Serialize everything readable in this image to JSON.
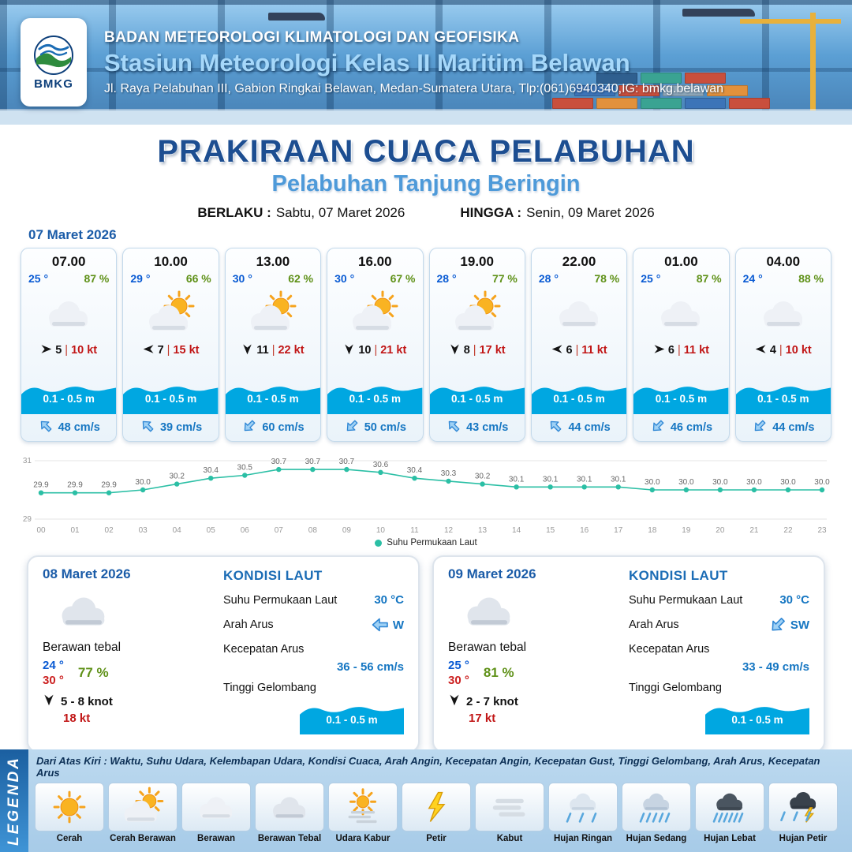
{
  "header": {
    "agency": "BADAN METEOROLOGI KLIMATOLOGI DAN GEOFISIKA",
    "station": "Stasiun Meteorologi Kelas II Maritim Belawan",
    "address": "Jl. Raya Pelabuhan III, Gabion Ringkai Belawan, Medan-Sumatera Utara, Tlp:(061)6940340,IG: bmkg.belawan",
    "logo_text": "BMKG"
  },
  "title": {
    "main": "PRAKIRAAN CUACA PELABUHAN",
    "sub": "Pelabuhan Tanjung Beringin",
    "berlaku_label": "BERLAKU :",
    "berlaku_value": "Sabtu, 07 Maret 2026",
    "hingga_label": "HINGGA :",
    "hingga_value": "Senin, 09 Maret 2026"
  },
  "forecast": {
    "date_label": "07 Maret 2026",
    "hourly": [
      {
        "time": "07.00",
        "temp": "25 °",
        "humidity": "87 %",
        "icon": "berawan",
        "wind_speed": "5",
        "wind_deg": 0,
        "gust": "10 kt",
        "wave": "0.1 - 0.5 m",
        "current": "48 cm/s",
        "current_deg": -135
      },
      {
        "time": "10.00",
        "temp": "29 °",
        "humidity": "66 %",
        "icon": "cerah-berawan",
        "wind_speed": "7",
        "wind_deg": 180,
        "gust": "15 kt",
        "wave": "0.1 - 0.5 m",
        "current": "39 cm/s",
        "current_deg": -135
      },
      {
        "time": "13.00",
        "temp": "30 °",
        "humidity": "62 %",
        "icon": "cerah-berawan",
        "wind_speed": "11",
        "wind_deg": 90,
        "gust": "22 kt",
        "wave": "0.1 - 0.5 m",
        "current": "60 cm/s",
        "current_deg": 135
      },
      {
        "time": "16.00",
        "temp": "30 °",
        "humidity": "67 %",
        "icon": "cerah-berawan",
        "wind_speed": "10",
        "wind_deg": 90,
        "gust": "21 kt",
        "wave": "0.1 - 0.5 m",
        "current": "50 cm/s",
        "current_deg": 135
      },
      {
        "time": "19.00",
        "temp": "28 °",
        "humidity": "77 %",
        "icon": "cerah-berawan",
        "wind_speed": "8",
        "wind_deg": 90,
        "gust": "17 kt",
        "wave": "0.1 - 0.5 m",
        "current": "43 cm/s",
        "current_deg": -135
      },
      {
        "time": "22.00",
        "temp": "28 °",
        "humidity": "78 %",
        "icon": "berawan",
        "wind_speed": "6",
        "wind_deg": 180,
        "gust": "11 kt",
        "wave": "0.1 - 0.5 m",
        "current": "44 cm/s",
        "current_deg": -135
      },
      {
        "time": "01.00",
        "temp": "25 °",
        "humidity": "87 %",
        "icon": "berawan",
        "wind_speed": "6",
        "wind_deg": 0,
        "gust": "11 kt",
        "wave": "0.1 - 0.5 m",
        "current": "46 cm/s",
        "current_deg": 135
      },
      {
        "time": "04.00",
        "temp": "24 °",
        "humidity": "88 %",
        "icon": "berawan",
        "wind_speed": "4",
        "wind_deg": 180,
        "gust": "10 kt",
        "wave": "0.1 - 0.5 m",
        "current": "44 cm/s",
        "current_deg": 135
      }
    ]
  },
  "chart_data": {
    "type": "line",
    "x": [
      "00",
      "01",
      "02",
      "03",
      "04",
      "05",
      "06",
      "07",
      "08",
      "09",
      "10",
      "11",
      "12",
      "13",
      "14",
      "15",
      "16",
      "17",
      "18",
      "19",
      "20",
      "21",
      "22",
      "23"
    ],
    "series": [
      {
        "name": "Suhu Permukaan Laut",
        "values": [
          29.9,
          29.9,
          29.9,
          30.0,
          30.2,
          30.4,
          30.5,
          30.7,
          30.7,
          30.7,
          30.6,
          30.4,
          30.3,
          30.2,
          30.1,
          30.1,
          30.1,
          30.1,
          30.0,
          30.0,
          30.0,
          30.0,
          30.0,
          30.0
        ]
      }
    ],
    "ylim": [
      29,
      31
    ],
    "line_color": "#2bbfa5",
    "legend_position": "bottom"
  },
  "daily": [
    {
      "date": "08 Maret 2026",
      "condition": "Berawan tebal",
      "icon": "berawan-tebal",
      "temp_min": "24 °",
      "temp_max": "30 °",
      "humidity": "77 %",
      "wind": "5 - 8 knot",
      "wind_deg": 90,
      "gust": "18 kt",
      "sea": {
        "title": "KONDISI LAUT",
        "sst_label": "Suhu Permukaan Laut",
        "sst": "30 °C",
        "dir_label": "Arah Arus",
        "dir": "W",
        "dir_deg": 180,
        "speed_label": "Kecepatan Arus",
        "speed": "36  - 56 cm/s",
        "wave_label": "Tinggi Gelombang",
        "wave": "0.1 - 0.5 m"
      }
    },
    {
      "date": "09 Maret 2026",
      "condition": "Berawan tebal",
      "icon": "berawan-tebal",
      "temp_min": "25 °",
      "temp_max": "30 °",
      "humidity": "81 %",
      "wind": "2  - 7 knot",
      "wind_deg": 90,
      "gust": "17 kt",
      "sea": {
        "title": "KONDISI LAUT",
        "sst_label": "Suhu Permukaan Laut",
        "sst": "30 °C",
        "dir_label": "Arah Arus",
        "dir": "SW",
        "dir_deg": 135,
        "speed_label": "Kecepatan Arus",
        "speed": "33  - 49 cm/s",
        "wave_label": "Tinggi Gelombang",
        "wave": "0.1 - 0.5 m"
      }
    }
  ],
  "legend": {
    "vertical_label": "LEGENDA",
    "description": "Dari Atas Kiri : Waktu, Suhu Udara, Kelembapan Udara, Kondisi Cuaca, Arah Angin, Kecepatan Angin, Kecepatan Gust, Tinggi Gelombang, Arah Arus, Kecepatan Arus",
    "items": [
      {
        "label": "Cerah",
        "icon": "cerah"
      },
      {
        "label": "Cerah Berawan",
        "icon": "cerah-berawan"
      },
      {
        "label": "Berawan",
        "icon": "berawan"
      },
      {
        "label": "Berawan Tebal",
        "icon": "berawan-tebal"
      },
      {
        "label": "Udara Kabur",
        "icon": "udara-kabur"
      },
      {
        "label": "Petir",
        "icon": "petir"
      },
      {
        "label": "Kabut",
        "icon": "kabut"
      },
      {
        "label": "Hujan Ringan",
        "icon": "hujan-ringan"
      },
      {
        "label": "Hujan Sedang",
        "icon": "hujan-sedang"
      },
      {
        "label": "Hujan Lebat",
        "icon": "hujan-lebat"
      },
      {
        "label": "Hujan Petir",
        "icon": "hujan-petir"
      }
    ]
  },
  "colors": {
    "title_blue": "#1d4e91",
    "subtitle_blue": "#4e9ad9",
    "temp_blue": "#0a5bd3",
    "humidity_green": "#5f9118",
    "gust_red": "#c11616",
    "wave_blue": "#00a7e1",
    "current_blue": "#1576c2",
    "chart_teal": "#2bbfa5"
  }
}
